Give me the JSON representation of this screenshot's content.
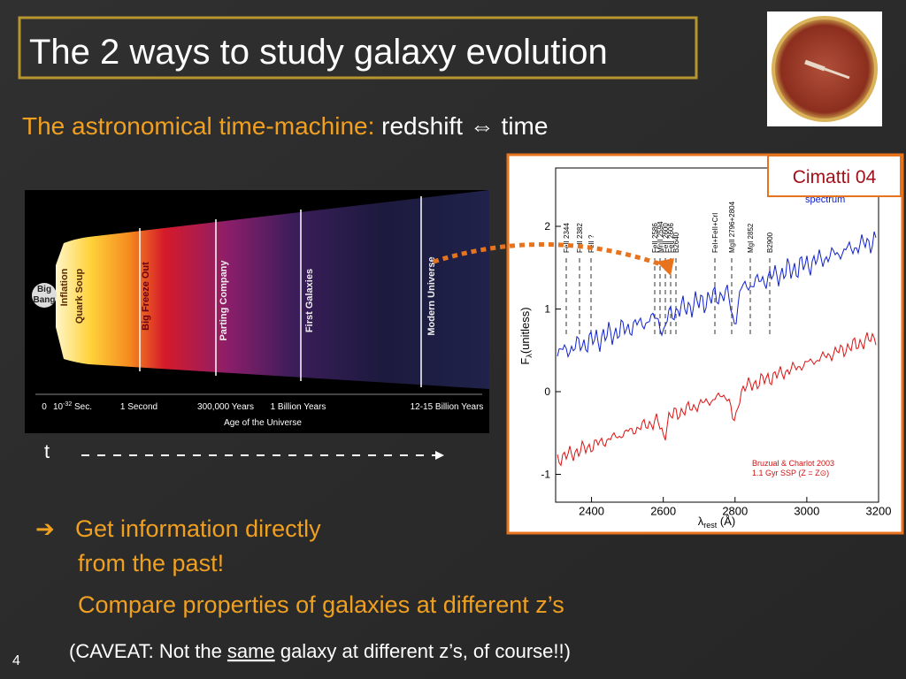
{
  "header": {
    "title": "The 2 ways to study galaxy evolution",
    "subtitle_lead": "The astronomical time-machine:",
    "subtitle_rest": "redshift ⇔ time"
  },
  "timeline": {
    "big_bang": [
      "Big",
      "Bang"
    ],
    "eras": [
      "Inflation",
      "Quark Soup",
      "Big Freeze Out",
      "Parting Company",
      "First Galaxies",
      "Modern Universe"
    ],
    "ticks": [
      "0",
      {
        "base": "10",
        "exp": "-32",
        "unit": " Sec."
      },
      "1 Second",
      "300,000 Years",
      "1 Billion Years",
      "12-15 Billion Years"
    ],
    "axis_label": "Age of the Universe",
    "time_symbol": "t"
  },
  "spectrum": {
    "credit": "Cimatti 04",
    "xticks": [
      2400,
      2600,
      2800,
      3000,
      3200
    ],
    "yticks": [
      2,
      1,
      0,
      -1
    ],
    "xlabel": {
      "symbol": "λ",
      "sub": "rest",
      "unit": " (Å)"
    },
    "ylabel": {
      "symbol": "F",
      "sub": "λ",
      "unit": "(unitless)"
    },
    "lines": [
      "FeII 2344",
      "FeII 2382",
      "FeII ?",
      "FeII 2586",
      "MnII 2594",
      "FeII 2600",
      "FeII 2606",
      "B2640",
      "FeI+FeII+CrI",
      "MgII 2796+2804",
      "MgI 2852",
      "B2900"
    ],
    "spectrum_label": "spectrum",
    "model_label": [
      "Bruzual & Charlot 2003",
      "1.1 Gyr SSP (Z = Z⊙)"
    ]
  },
  "bullets": {
    "arrow": "➔",
    "lines": [
      "Get information directly",
      "from the past!",
      "Compare properties of galaxies at different z’s"
    ]
  },
  "caveat": {
    "before": "(CAVEAT: Not the ",
    "underlined": "same",
    "after": " galaxy at different z’s, of course!!)"
  },
  "page_number": "4"
}
